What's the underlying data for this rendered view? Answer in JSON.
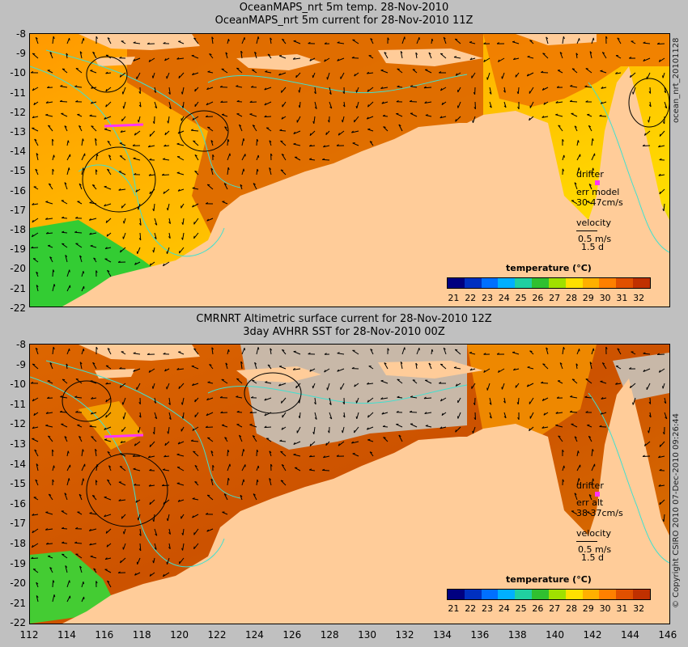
{
  "top": {
    "title1": "OceanMAPS_nrt 5m temp. 28-Nov-2010",
    "title2": "OceanMAPS_nrt 5m current for 28-Nov-2010 11Z",
    "side_label": "ocean_nrt_20101128",
    "drifter_label": "drifter",
    "err_label": "err model",
    "err_value": "30 47cm/s",
    "velocity_label": "velocity",
    "velocity_scale": "0.5 m/s",
    "velocity_time": "1.5 d",
    "legend_title": "temperature (°C)"
  },
  "bottom": {
    "title1": "CMRNRT Altimetric surface current for 28-Nov-2010 12Z",
    "title2": "3day AVHRR SST for 28-Nov-2010 00Z",
    "side_label": "© Copyright CSIRO 2010   07-Dec-2010 09:26:44",
    "drifter_label": "drifter",
    "err_label": "err alt",
    "err_value": "38 37cm/s",
    "velocity_label": "velocity",
    "velocity_scale": "0.5 m/s",
    "velocity_time": "1.5 d",
    "legend_title": "temperature (°C)"
  },
  "colorbar_ticks": [
    "21",
    "22",
    "23",
    "24",
    "25",
    "26",
    "27",
    "28",
    "29",
    "30",
    "31",
    "32"
  ],
  "y_ticks": [
    "-8",
    "-9",
    "-10",
    "-11",
    "-12",
    "-13",
    "-14",
    "-15",
    "-16",
    "-17",
    "-18",
    "-19",
    "-20",
    "-21",
    "-22"
  ],
  "x_ticks": [
    "112",
    "114",
    "116",
    "118",
    "120",
    "122",
    "124",
    "126",
    "128",
    "130",
    "132",
    "134",
    "136",
    "138",
    "140",
    "142",
    "144",
    "146"
  ],
  "colors": {
    "land": "#ffcc99",
    "nodata": "#c8b8a8",
    "warm": "#cc5200",
    "mid": "#ff9900",
    "cool": "#ffdd00",
    "cold": "#33cc33",
    "contour": "#40e0d0",
    "drifter": "#ff33ff"
  }
}
